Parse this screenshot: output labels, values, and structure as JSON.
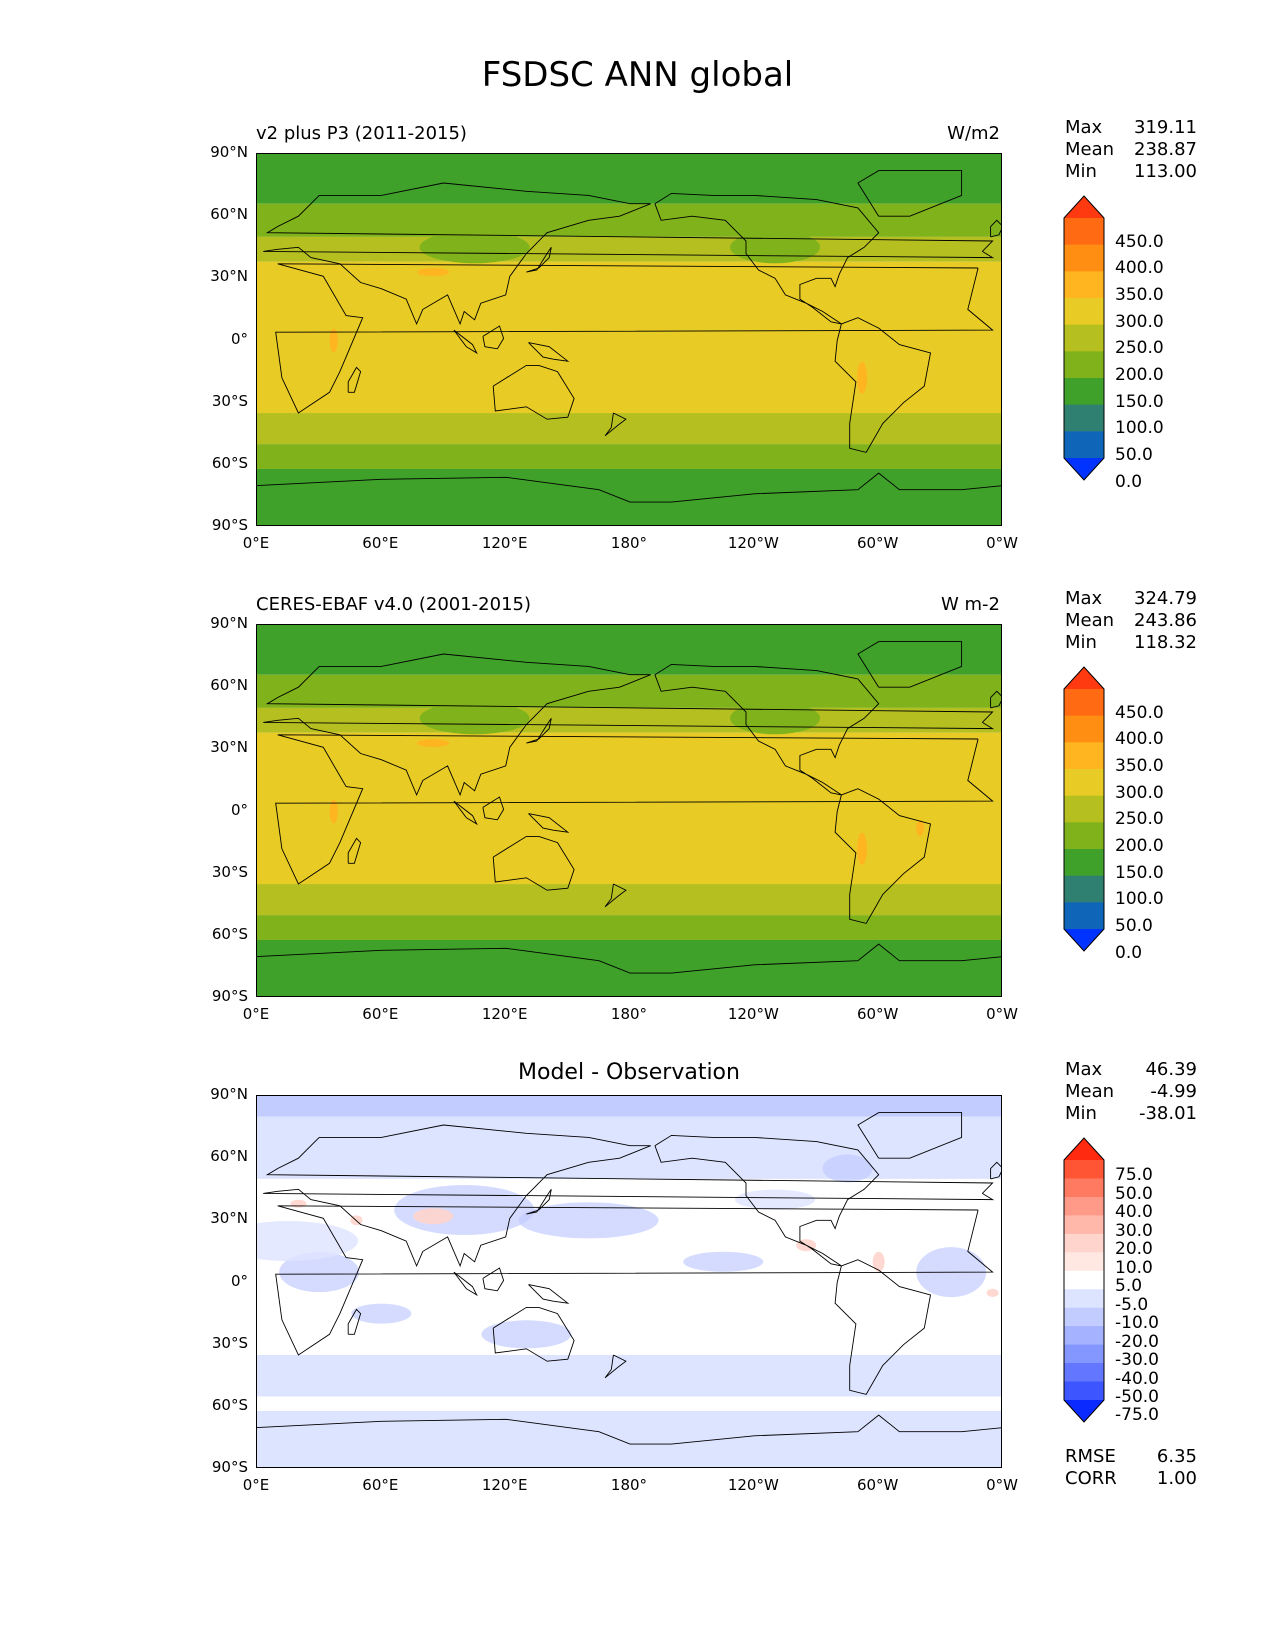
{
  "figure": {
    "title": "FSDSC ANN global"
  },
  "axes": {
    "lat_labels": [
      "90°N",
      "60°N",
      "30°N",
      "0°",
      "30°S",
      "60°S",
      "90°S"
    ],
    "lon_labels": [
      "0°E",
      "60°E",
      "120°E",
      "180°",
      "120°W",
      "60°W",
      "0°W"
    ]
  },
  "panels": [
    {
      "left_title": "v2 plus P3 (2011-2015)",
      "right_title": "W/m2",
      "center_title": "",
      "stats": {
        "max_label": "Max",
        "max": "319.11",
        "mean_label": "Mean",
        "mean": "238.87",
        "min_label": "Min",
        "min": "113.00"
      },
      "colorbar": {
        "ticks": [
          "450.0",
          "400.0",
          "350.0",
          "300.0",
          "250.0",
          "200.0",
          "150.0",
          "100.0",
          "50.0",
          "0.0"
        ],
        "colors": [
          "#ff3a10",
          "#ff6a12",
          "#ff8e12",
          "#ffb520",
          "#e8cb25",
          "#b5c020",
          "#7fb21b",
          "#3fa02a",
          "#2f8070",
          "#0f66b8",
          "#0033ff"
        ]
      },
      "field": "model"
    },
    {
      "left_title": "CERES-EBAF v4.0 (2001-2015)",
      "right_title": "W m-2",
      "center_title": "",
      "stats": {
        "max_label": "Max",
        "max": "324.79",
        "mean_label": "Mean",
        "mean": "243.86",
        "min_label": "Min",
        "min": "118.32"
      },
      "colorbar": {
        "ticks": [
          "450.0",
          "400.0",
          "350.0",
          "300.0",
          "250.0",
          "200.0",
          "150.0",
          "100.0",
          "50.0",
          "0.0"
        ],
        "colors": [
          "#ff3a10",
          "#ff6a12",
          "#ff8e12",
          "#ffb520",
          "#e8cb25",
          "#b5c020",
          "#7fb21b",
          "#3fa02a",
          "#2f8070",
          "#0f66b8",
          "#0033ff"
        ]
      },
      "field": "obs"
    },
    {
      "left_title": "",
      "right_title": "",
      "center_title": "Model - Observation",
      "stats": {
        "max_label": "Max",
        "max": "46.39",
        "mean_label": "Mean",
        "mean": "-4.99",
        "min_label": "Min",
        "min": "-38.01"
      },
      "colorbar": {
        "ticks": [
          "75.0",
          "50.0",
          "40.0",
          "30.0",
          "20.0",
          "10.0",
          "5.0",
          "-5.0",
          "-10.0",
          "-20.0",
          "-30.0",
          "-40.0",
          "-50.0",
          "-75.0"
        ],
        "colors": [
          "#ff2a10",
          "#ff5535",
          "#ff7a60",
          "#ff9a88",
          "#ffb8aa",
          "#ffd4cc",
          "#ffe8e2",
          "#ffffff",
          "#dde4ff",
          "#c2ccff",
          "#a4b2ff",
          "#8496ff",
          "#6276ff",
          "#3d55ff",
          "#0a2aff"
        ]
      },
      "field": "diff",
      "metrics": {
        "rmse_label": "RMSE",
        "rmse": "6.35",
        "corr_label": "CORR",
        "corr": "1.00"
      }
    }
  ]
}
